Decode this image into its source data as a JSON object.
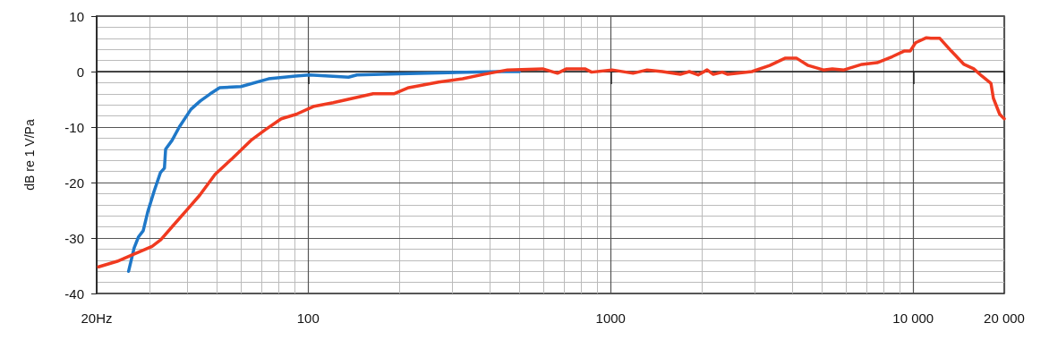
{
  "chart_data": {
    "type": "line",
    "ylabel": "dB re 1 V/Pa",
    "xlim": [
      20,
      20000
    ],
    "ylim": [
      -40,
      10
    ],
    "xticks": [
      {
        "value": 20,
        "label": "20Hz"
      },
      100,
      1000,
      {
        "value": 10000,
        "label": "10 000"
      },
      {
        "value": 20000,
        "label": "20 000"
      }
    ],
    "yticks": [
      -40,
      -30,
      -20,
      -10,
      0,
      10
    ],
    "log": "x",
    "grid": true,
    "marker": "none",
    "line_style": "solid",
    "series": [
      {
        "color": "#1f78c8",
        "x": [
          25.5,
          26.6,
          27.5,
          28.5,
          29.5,
          31,
          32.5,
          33.5,
          33.8,
          35.5,
          37.5,
          41,
          44,
          47.5,
          51,
          60,
          74,
          91,
          101,
          136,
          145,
          200,
          290,
          435,
          500
        ],
        "values": [
          -36,
          -31.8,
          -29.8,
          -28.7,
          -25.3,
          -21.5,
          -18.2,
          -17.4,
          -14,
          -12.4,
          -10,
          -6.8,
          -5.3,
          -4,
          -2.9,
          -2.7,
          -1.3,
          -0.8,
          -0.6,
          -1,
          -0.6,
          -0.4,
          -0.2,
          0,
          0
        ]
      },
      {
        "color": "#f03a20",
        "x": [
          20.3,
          23.4,
          26.1,
          30.5,
          32.6,
          35.6,
          40.1,
          43.8,
          49.3,
          56.3,
          64.7,
          72.1,
          81.5,
          91.3,
          104,
          121,
          164,
          192,
          215,
          270,
          324,
          380,
          456,
          596,
          667,
          715,
          822,
          865,
          1010,
          1186,
          1320,
          1482,
          1698,
          1820,
          1946,
          2084,
          2184,
          2339,
          2438,
          2930,
          3358,
          3768,
          4120,
          4498,
          5050,
          5406,
          5902,
          6772,
          7600,
          8532,
          9332,
          9774,
          10186,
          11060,
          11432,
          12248,
          13366,
          14724,
          15852,
          16866,
          18072,
          18412,
          19322,
          20000
        ],
        "values": [
          -35.2,
          -34.2,
          -33.1,
          -31.5,
          -30.3,
          -27.9,
          -24.7,
          -22.3,
          -18.5,
          -15.6,
          -12.4,
          -10.5,
          -8.5,
          -7.7,
          -6.3,
          -5.6,
          -4,
          -4,
          -2.9,
          -1.9,
          -1.3,
          -0.5,
          0.3,
          0.5,
          -0.3,
          0.5,
          0.5,
          -0.1,
          0.3,
          -0.3,
          0.3,
          0,
          -0.5,
          0,
          -0.6,
          0.3,
          -0.5,
          -0.1,
          -0.5,
          0,
          1.1,
          2.4,
          2.4,
          1.1,
          0.3,
          0.5,
          0.3,
          1.3,
          1.6,
          2.7,
          3.7,
          3.7,
          5.2,
          6.1,
          6,
          6,
          3.7,
          1.3,
          0.5,
          -0.8,
          -2.1,
          -4.8,
          -7.7,
          -8.5
        ]
      }
    ]
  }
}
